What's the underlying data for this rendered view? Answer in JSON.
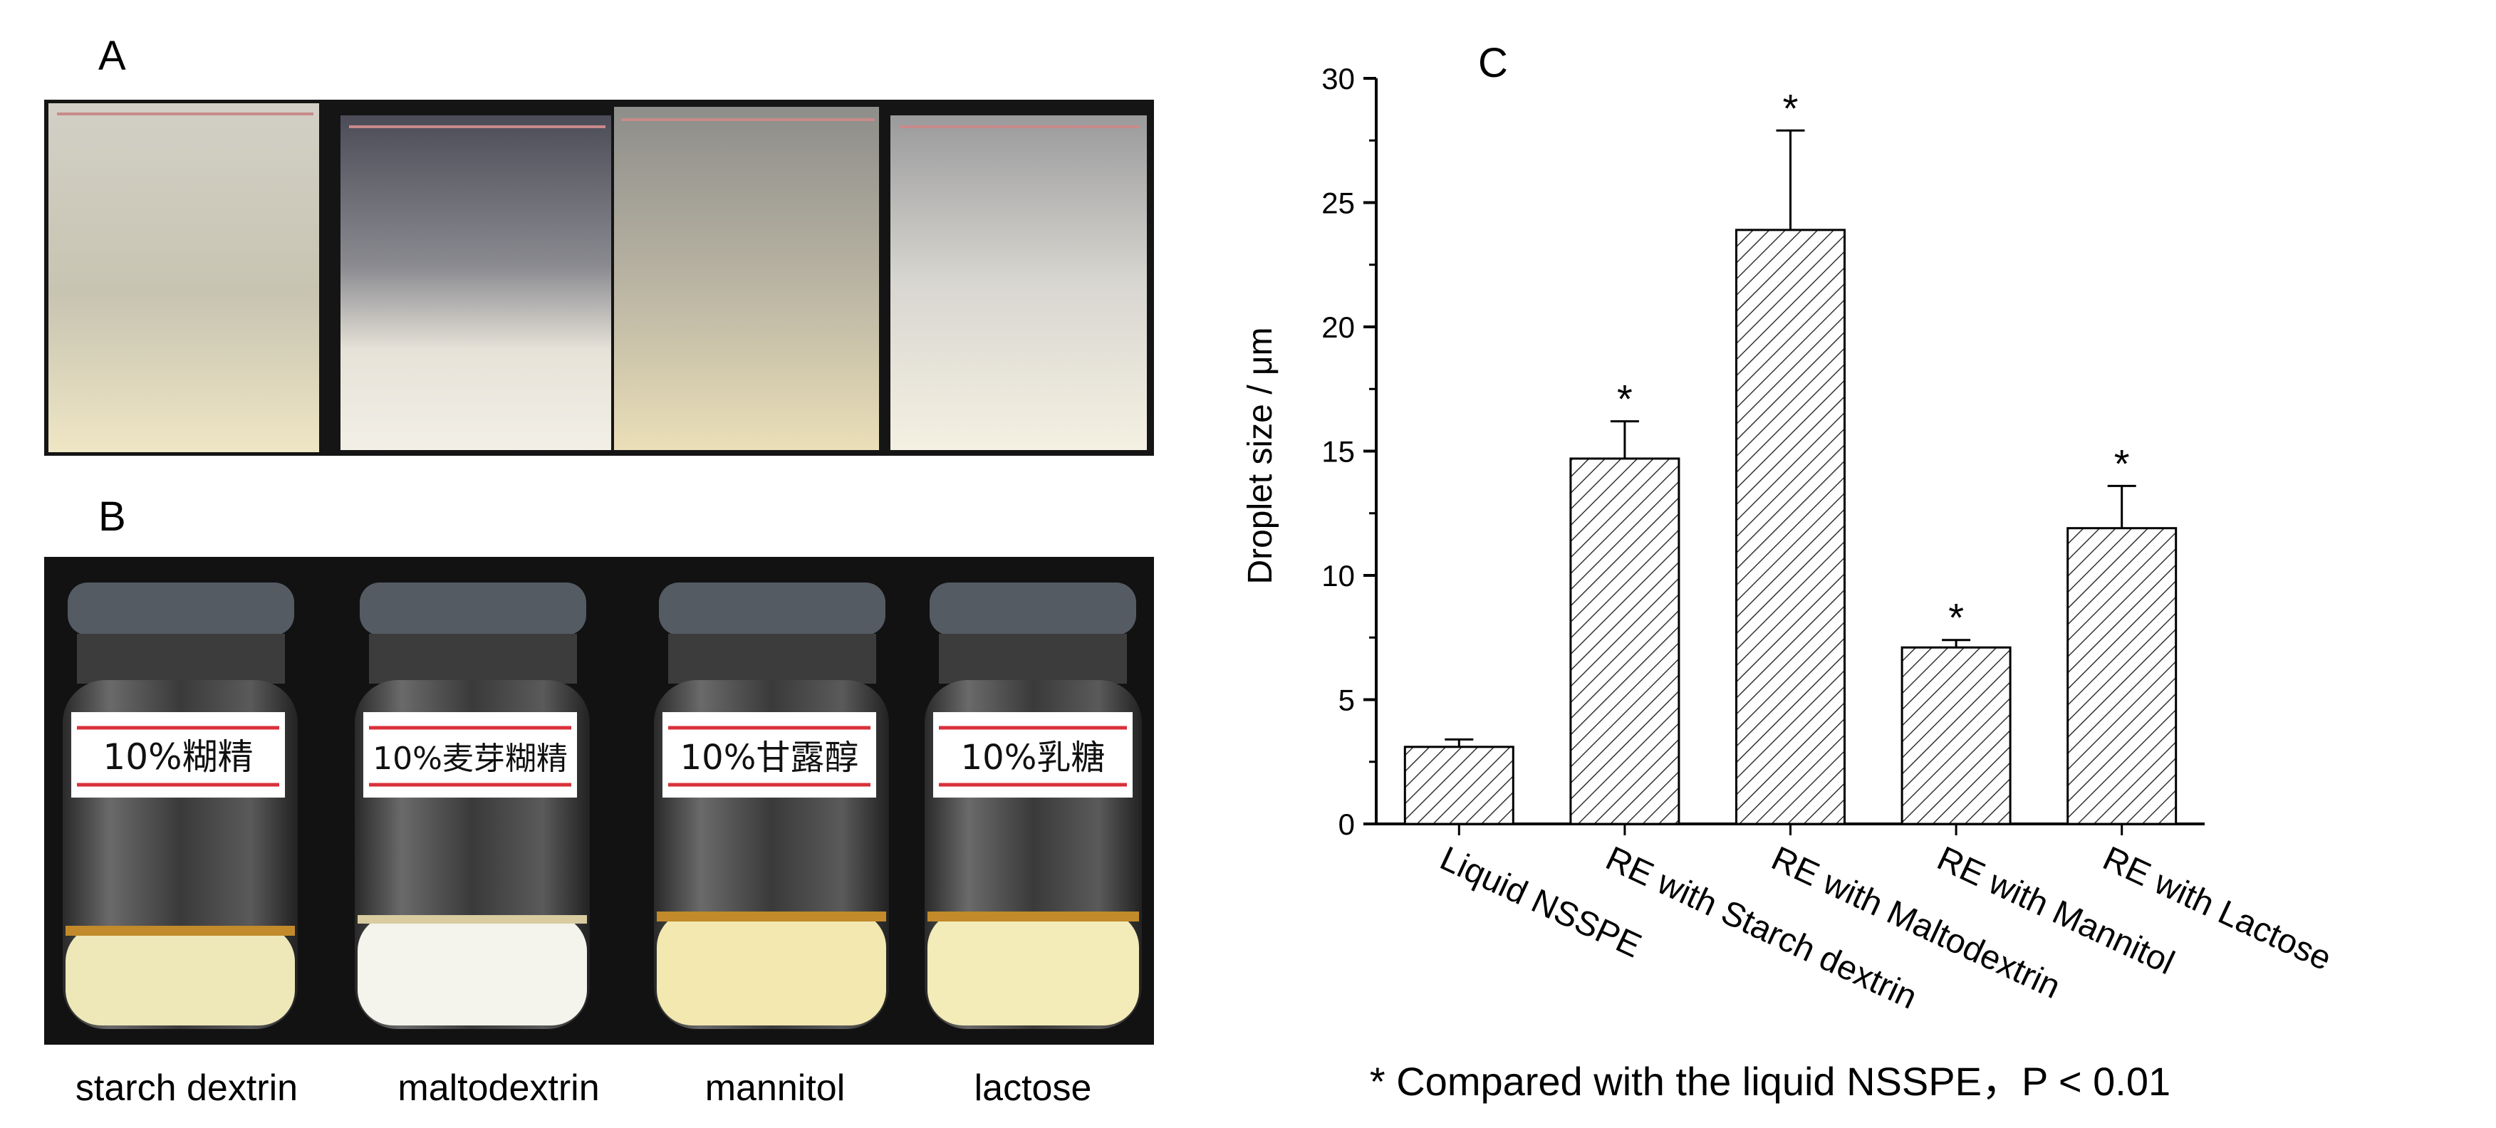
{
  "panels": {
    "a": "A",
    "b": "B",
    "c": "C"
  },
  "photo_b_labels": [
    "starch dextrin",
    "maltodextrin",
    "mannitol",
    "lactose"
  ],
  "photo_b_handwritten": [
    "10%糊精",
    "10%麦芽糊精",
    "10%甘露醇",
    "10%乳糖"
  ],
  "chart_data": {
    "type": "bar",
    "ylabel": "Droplet size / μm",
    "ylim": [
      0,
      30
    ],
    "yticks": [
      0,
      5,
      10,
      15,
      20,
      25,
      30
    ],
    "categories": [
      "Liquid NSSPE",
      "RE with Starch dextrin",
      "RE with Maltodextrin",
      "RE with Mannitol",
      "RE with Lactose"
    ],
    "values": [
      3.1,
      14.7,
      23.9,
      7.1,
      11.9
    ],
    "errors": [
      0.3,
      1.5,
      4.0,
      0.3,
      1.7
    ],
    "significance": [
      "",
      "*",
      "*",
      "*",
      "*"
    ],
    "bar_pattern": "diagonal hatch",
    "footnote": "* Compared with the liquid NSSPE，P < 0.01"
  },
  "colors": {
    "axis": "#000000",
    "hatch": "#333333",
    "photo_bg": "#111111",
    "cap": "#555b63",
    "label_line": "#d9303a"
  }
}
